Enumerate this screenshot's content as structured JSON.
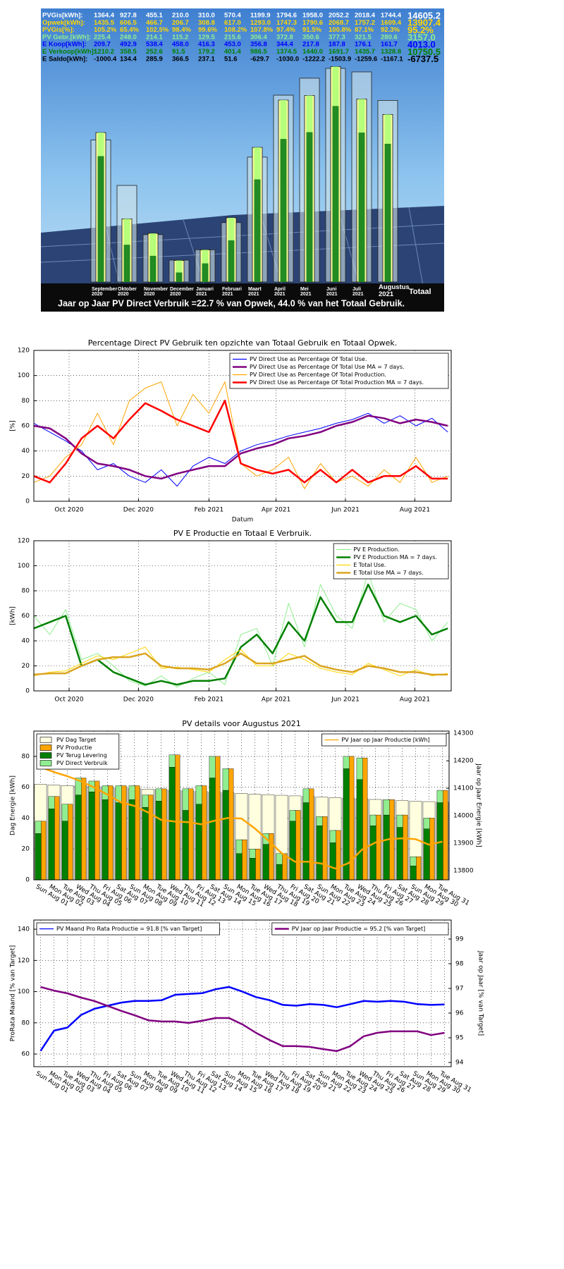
{
  "chart_data": [
    {
      "type": "bar",
      "categories": [
        "September 2020",
        "Oktober 2020",
        "November 2020",
        "December 2020",
        "Januari 2021",
        "Februari 2021",
        "Maart 2021",
        "April 2021",
        "Mei 2021",
        "Juni 2021",
        "Juli 2021",
        "Augustus 2021"
      ],
      "total_header": "Totaal",
      "rows": [
        {
          "name": "PVGis[kWh]:",
          "color": "#ffffff",
          "bar_color": "#cfe3e8",
          "values": [
            1364.4,
            927.8,
            455.1,
            210.0,
            310.0,
            570.4,
            1199.9,
            1794.6,
            1958.0,
            2052.2,
            2018.4,
            1744.4
          ],
          "value_labels": [
            "1364.4",
            "927.8",
            "455.1",
            "210.0",
            "310.0",
            "570.4",
            "1199.9",
            "1794.6",
            "1958.0",
            "2052.2",
            "2018.4",
            "1744.4"
          ],
          "total": "14605.2"
        },
        {
          "name": "Opwek[kWh]:",
          "color": "#ffd700",
          "bar_color": "#ffffa0",
          "values": [
            1435.5,
            606.5,
            466.7,
            206.7,
            308.8,
            617.0,
            1293.0,
            1747.3,
            1790.6,
            2068.7,
            1757.2,
            1609.4
          ],
          "value_labels": [
            "1435.5",
            "606.5",
            "466.7",
            "206.7",
            "308.8",
            "617.0",
            "1293.0",
            "1747.3",
            "1790.6",
            "2068.7",
            "1757.2",
            "1609.4"
          ],
          "total": "13907.4"
        },
        {
          "name": "PVGis[%]:",
          "color": "#ffd700",
          "values": [
            "105.2%",
            "65.4%",
            "102.5%",
            "98.4%",
            "99.6%",
            "108.2%",
            "107.8%",
            "97.4%",
            "91.5%",
            "100.8%",
            "87.1%",
            "92.3%"
          ],
          "total": "95.2%"
        },
        {
          "name": "PV Gebr.[kWh]:",
          "color": "#90ee90",
          "bar_color": "#b6ff7a",
          "values": [
            225.4,
            248.0,
            214.1,
            115.2,
            129.5,
            215.6,
            306.4,
            372.8,
            350.6,
            377.3,
            321.5,
            280.6
          ],
          "value_labels": [
            "225.4",
            "248.0",
            "214.1",
            "115.2",
            "129.5",
            "215.6",
            "306.4",
            "372.8",
            "350.6",
            "377.3",
            "321.5",
            "280.6"
          ],
          "total": "3157.0"
        },
        {
          "name": "E Koop[kWh]:",
          "color": "#0000ff",
          "values": [
            "209.7",
            "492.9",
            "538.4",
            "458.0",
            "416.3",
            "453.0",
            "356.8",
            "344.4",
            "217.8",
            "187.8",
            "176.1",
            "161.7"
          ],
          "total": "4013.0"
        },
        {
          "name": "E Verkoop[kWh]:",
          "color": "#008000",
          "bar_color": "#228b22",
          "values": [
            1210.2,
            358.5,
            252.6,
            91.5,
            179.2,
            401.4,
            986.5,
            1374.5,
            1440.0,
            1691.7,
            1435.7,
            1328.8
          ],
          "value_labels": [
            "1210.2",
            "358.5",
            "252.6",
            "91.5",
            "179.2",
            "401.4",
            "986.5",
            "1374.5",
            "1440.0",
            "1691.7",
            "1435.7",
            "1328.8"
          ],
          "total": "10750.5"
        },
        {
          "name": "E Saldo[kWh]:",
          "color": "#000000",
          "values": [
            "-1000.4",
            "134.4",
            "285.9",
            "366.5",
            "237.1",
            "51.6",
            "-629.7",
            "-1030.0",
            "-1222.2",
            "-1503.9",
            "-1259.6",
            "-1167.1"
          ],
          "total": "-6737.5"
        }
      ],
      "note": "Jaar op Jaar PV Direct Verbruik =22.7 % van Opwek, 44.0 % van het Totaal Gebruik."
    },
    {
      "type": "line",
      "title": "Percentage Direct PV Gebruik ten opzichte van Totaal Gebruik en Totaal Opwek.",
      "xlabel": "Datum",
      "ylabel": "[%]",
      "x": [
        0,
        14,
        28,
        42,
        56,
        70,
        84,
        98,
        112,
        126,
        140,
        154,
        168,
        182,
        196,
        210,
        224,
        238,
        252,
        266,
        280,
        294,
        308,
        322,
        336,
        350,
        364
      ],
      "xlim": [
        0,
        367
      ],
      "xticks": [
        {
          "value": 31,
          "label": "Oct 2020"
        },
        {
          "value": 92,
          "label": "Dec 2020"
        },
        {
          "value": 154,
          "label": "Feb 2021"
        },
        {
          "value": 213,
          "label": "Apr 2021"
        },
        {
          "value": 274,
          "label": "Jun 2021"
        },
        {
          "value": 335,
          "label": "Aug 2021"
        }
      ],
      "ylim": [
        0,
        120
      ],
      "yticks": [
        0,
        20,
        40,
        60,
        80,
        100,
        120
      ],
      "grid": true,
      "legend": "upper right",
      "series": [
        {
          "name": "PV Direct Use as Percentage Of Total Use.",
          "color": "#0000ff",
          "values": [
            62,
            55,
            48,
            40,
            25,
            30,
            20,
            15,
            25,
            12,
            28,
            35,
            30,
            40,
            45,
            48,
            52,
            55,
            58,
            62,
            65,
            70,
            62,
            68,
            60,
            66,
            55
          ]
        },
        {
          "name": "PV Direct Use as Percentage Of Total Use MA = 7 days.",
          "color": "#800080",
          "values": [
            60,
            58,
            50,
            38,
            30,
            28,
            25,
            20,
            18,
            22,
            25,
            28,
            28,
            38,
            42,
            45,
            50,
            52,
            55,
            60,
            63,
            68,
            66,
            62,
            65,
            63,
            60
          ]
        },
        {
          "name": "PV Direct Use as Percentage Of Total Production.",
          "color": "#ffa500",
          "values": [
            15,
            20,
            35,
            45,
            70,
            45,
            80,
            90,
            95,
            60,
            85,
            70,
            95,
            30,
            20,
            25,
            35,
            10,
            30,
            15,
            20,
            12,
            25,
            15,
            35,
            15,
            20
          ]
        },
        {
          "name": "PV Direct Use as Percentage Of Total Production MA = 7 days.",
          "color": "#ff0000",
          "values": [
            20,
            15,
            30,
            50,
            60,
            50,
            65,
            78,
            72,
            65,
            60,
            55,
            80,
            30,
            25,
            22,
            25,
            15,
            25,
            15,
            25,
            15,
            20,
            20,
            28,
            18,
            18
          ]
        }
      ]
    },
    {
      "type": "line",
      "title": "PV E Productie en Totaal E Verbruik.",
      "ylabel": "[kWh]",
      "x": [
        0,
        14,
        28,
        42,
        56,
        70,
        84,
        98,
        112,
        126,
        140,
        154,
        168,
        182,
        196,
        210,
        224,
        238,
        252,
        266,
        280,
        294,
        308,
        322,
        336,
        350,
        364
      ],
      "xlim": [
        0,
        367
      ],
      "xticks": [
        {
          "value": 31,
          "label": "Oct 2020"
        },
        {
          "value": 92,
          "label": "Dec 2020"
        },
        {
          "value": 154,
          "label": "Feb 2021"
        },
        {
          "value": 213,
          "label": "Apr 2021"
        },
        {
          "value": 274,
          "label": "Jun 2021"
        },
        {
          "value": 335,
          "label": "Aug 2021"
        }
      ],
      "ylim": [
        0,
        120
      ],
      "yticks": [
        0,
        20,
        40,
        60,
        80,
        100,
        120
      ],
      "grid": true,
      "legend": "upper right",
      "series": [
        {
          "name": "PV E Production.",
          "color": "#90ee90",
          "values": [
            60,
            45,
            65,
            25,
            30,
            20,
            8,
            4,
            12,
            3,
            10,
            15,
            5,
            45,
            50,
            20,
            70,
            35,
            85,
            60,
            50,
            95,
            55,
            70,
            65,
            40,
            55
          ]
        },
        {
          "name": "PV E Production MA = 7 days.",
          "color": "#008000",
          "values": [
            50,
            55,
            60,
            20,
            25,
            15,
            10,
            5,
            8,
            5,
            8,
            8,
            10,
            35,
            45,
            30,
            55,
            40,
            75,
            55,
            55,
            85,
            60,
            55,
            60,
            45,
            50
          ]
        },
        {
          "name": "E Total Use.",
          "color": "#ffd700",
          "values": [
            12,
            15,
            16,
            22,
            28,
            25,
            30,
            35,
            18,
            19,
            17,
            15,
            25,
            33,
            20,
            20,
            30,
            25,
            18,
            15,
            13,
            22,
            17,
            12,
            17,
            12,
            14
          ]
        },
        {
          "name": "E Total Use MA = 7 days.",
          "color": "#daa520",
          "values": [
            13,
            14,
            14,
            20,
            25,
            27,
            27,
            30,
            20,
            18,
            18,
            17,
            22,
            30,
            22,
            22,
            25,
            28,
            20,
            17,
            15,
            20,
            18,
            15,
            15,
            13,
            13
          ]
        }
      ]
    },
    {
      "type": "combo",
      "title": "PV details voor Augustus 2021",
      "ylabel": "Dag Energie [kWh]",
      "y2label": "Jaar op Jaar Energie [kWh]",
      "categories": [
        "Sun Aug 01",
        "Mon Aug 02",
        "Tue Aug 03",
        "Wed Aug 04",
        "Thu Aug 05",
        "Fri Aug 06",
        "Sat Aug 07",
        "Sun Aug 08",
        "Mon Aug 09",
        "Tue Aug 10",
        "Wed Aug 11",
        "Thu Aug 12",
        "Fri Aug 13",
        "Sat Aug 14",
        "Sun Aug 15",
        "Mon Aug 16",
        "Tue Aug 17",
        "Wed Aug 18",
        "Thu Aug 19",
        "Fri Aug 20",
        "Sat Aug 21",
        "Sun Aug 22",
        "Mon Aug 23",
        "Tue Aug 24",
        "Wed Aug 25",
        "Thu Aug 26",
        "Fri Aug 27",
        "Sat Aug 28",
        "Sun Aug 29",
        "Mon Aug 30",
        "Tue Aug 31"
      ],
      "ylim": [
        0,
        96.4
      ],
      "yticks": [
        0,
        20,
        40,
        60,
        80
      ],
      "y2lim": [
        13767,
        14308
      ],
      "y2ticks": [
        13800,
        13900,
        14000,
        14100,
        14200,
        14300
      ],
      "grid": true,
      "legend": "upper left",
      "legend2": "upper right",
      "series": [
        {
          "name": "PV Dag Target",
          "color": "#ffffe0",
          "values": [
            62,
            61.5,
            61.1,
            60.8,
            60.4,
            60,
            59.6,
            59.2,
            58.8,
            58.4,
            58,
            57.6,
            57.2,
            56.8,
            56.4,
            56,
            55.6,
            55.2,
            54.8,
            54.4,
            54,
            53.6,
            53.3,
            52.9,
            52.5,
            52.1,
            51.8,
            51.4,
            51,
            50.7,
            50.3
          ]
        },
        {
          "name": "PV Productie",
          "color": "#ffa500",
          "values": [
            38,
            54,
            49,
            66,
            64,
            61,
            61,
            61,
            55,
            59,
            81,
            59,
            61,
            80,
            72,
            26,
            20,
            30,
            17,
            45,
            59,
            41,
            32,
            80,
            79,
            42,
            52,
            42,
            15,
            40,
            58
          ]
        },
        {
          "name": "PV Terug Levering",
          "color": "#008000",
          "values": [
            30,
            46,
            38,
            55,
            57,
            52,
            50,
            52,
            47,
            51,
            73,
            45,
            49,
            66,
            58,
            17,
            14,
            23,
            10,
            38,
            50,
            35,
            24,
            72,
            65,
            35,
            42,
            34,
            9,
            33,
            50
          ]
        },
        {
          "name": "PV Direct Verbruik",
          "color": "#90ee90",
          "values": [
            8,
            8,
            11,
            11,
            7,
            9,
            11,
            9,
            8,
            8,
            8,
            14,
            12,
            14,
            14,
            9,
            6,
            7,
            7,
            7,
            9,
            6,
            8,
            8,
            14,
            7,
            10,
            8,
            6,
            7,
            8
          ]
        },
        {
          "name": "PV Jaar op Jaar Productie [kWh]",
          "color": "#ffa500",
          "axis": "y2",
          "values": [
            14177,
            14159,
            14144,
            14126,
            14103,
            14077,
            14049,
            14036,
            14013,
            13985,
            13979,
            13977,
            13969,
            13982,
            13992,
            13990,
            13954,
            13910,
            13864,
            13833,
            13833,
            13826,
            13808,
            13828,
            13877,
            13903,
            13915,
            13918,
            13915,
            13895,
            13906
          ]
        }
      ]
    },
    {
      "type": "line",
      "ylabel": "ProRata Maand [% van Target]",
      "y2label": "Jaar op Jaar [% van Target]",
      "categories": [
        "Sun Aug 01",
        "Mon Aug 02",
        "Tue Aug 03",
        "Wed Aug 04",
        "Thu Aug 05",
        "Fri Aug 06",
        "Sat Aug 07",
        "Sun Aug 08",
        "Mon Aug 09",
        "Tue Aug 10",
        "Wed Aug 11",
        "Thu Aug 12",
        "Fri Aug 13",
        "Sat Aug 14",
        "Sun Aug 15",
        "Mon Aug 16",
        "Tue Aug 17",
        "Wed Aug 18",
        "Thu Aug 19",
        "Fri Aug 20",
        "Sat Aug 21",
        "Sun Aug 22",
        "Mon Aug 23",
        "Tue Aug 24",
        "Wed Aug 25",
        "Thu Aug 26",
        "Fri Aug 27",
        "Sat Aug 28",
        "Sun Aug 29",
        "Mon Aug 30",
        "Tue Aug 31"
      ],
      "ylim": [
        51.9,
        145.9
      ],
      "yticks": [
        60,
        80,
        100,
        120,
        140
      ],
      "y2lim": [
        93.83,
        99.77
      ],
      "y2ticks": [
        94,
        95,
        96,
        97,
        98,
        99
      ],
      "grid": true,
      "legend": "upper left",
      "legend2": "upper right",
      "series": [
        {
          "name": "PV Maand Pro Rata Productie = 91.8 [% van Target]",
          "color": "#0000ff",
          "values": [
            62,
            75,
            77,
            85,
            89,
            91,
            93,
            94,
            94,
            94.5,
            98,
            98.5,
            99,
            101.5,
            103,
            100,
            96.5,
            94.5,
            91.5,
            91,
            92,
            91.5,
            90,
            92,
            94,
            93.5,
            94,
            93.5,
            92,
            91.5,
            91.8
          ]
        },
        {
          "name": "PV Jaar op Jaar Productie = 95.2 [% van Target]",
          "color": "#800080",
          "axis": "y2",
          "values": [
            97.06,
            96.91,
            96.8,
            96.63,
            96.49,
            96.29,
            96.09,
            95.91,
            95.71,
            95.66,
            95.66,
            95.6,
            95.69,
            95.8,
            95.8,
            95.54,
            95.2,
            94.91,
            94.66,
            94.66,
            94.63,
            94.54,
            94.46,
            94.66,
            95.06,
            95.2,
            95.26,
            95.26,
            95.26,
            95.11,
            95.2
          ]
        }
      ]
    }
  ]
}
